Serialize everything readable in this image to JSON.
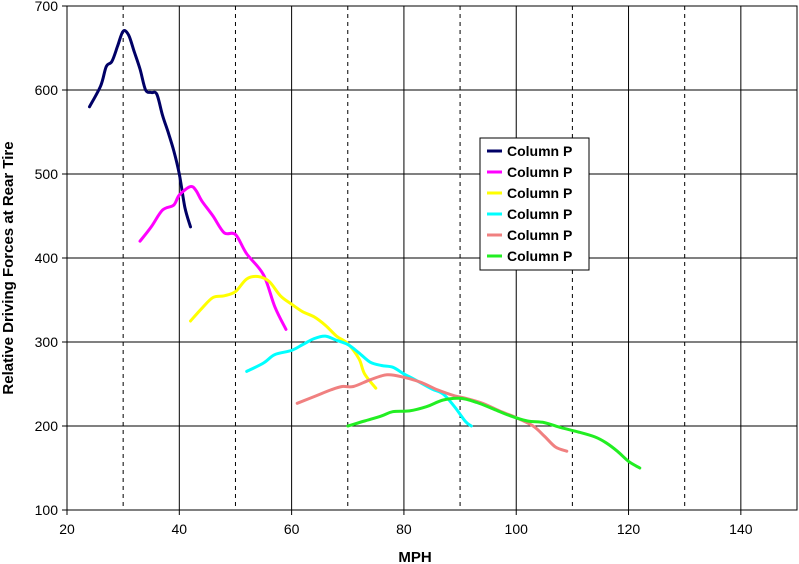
{
  "chart_data": {
    "type": "line",
    "title": "",
    "xlabel": "MPH",
    "ylabel": "Relative Driving Forces at Rear Tire",
    "xlim": [
      20,
      150
    ],
    "ylim": [
      100,
      700
    ],
    "xticks": [
      20,
      40,
      60,
      80,
      100,
      120,
      140
    ],
    "yticks": [
      100,
      200,
      300,
      400,
      500,
      600,
      700
    ],
    "vertical_gridlines": [
      30,
      40,
      50,
      60,
      70,
      80,
      90,
      100,
      110,
      120,
      130,
      140,
      150
    ],
    "vertical_grid_style": "mixed-solid-dashed",
    "horizontal_grid": true,
    "legend_position": "center-right",
    "series": [
      {
        "name": "Column P",
        "color": "#000066",
        "points": [
          [
            24,
            580
          ],
          [
            26,
            605
          ],
          [
            27,
            628
          ],
          [
            28,
            634
          ],
          [
            29,
            652
          ],
          [
            30,
            670
          ],
          [
            31,
            665
          ],
          [
            32,
            645
          ],
          [
            33,
            625
          ],
          [
            34,
            600
          ],
          [
            35,
            597
          ],
          [
            36,
            595
          ],
          [
            37,
            570
          ],
          [
            38,
            550
          ],
          [
            39,
            528
          ],
          [
            40,
            500
          ],
          [
            41,
            460
          ],
          [
            42,
            437
          ]
        ]
      },
      {
        "name": "Column P",
        "color": "#ff00ff",
        "points": [
          [
            33,
            420
          ],
          [
            35,
            437
          ],
          [
            37,
            457
          ],
          [
            39,
            463
          ],
          [
            40,
            475
          ],
          [
            42,
            485
          ],
          [
            43,
            480
          ],
          [
            44,
            468
          ],
          [
            46,
            450
          ],
          [
            48,
            430
          ],
          [
            50,
            428
          ],
          [
            52,
            405
          ],
          [
            55,
            380
          ],
          [
            57,
            342
          ],
          [
            59,
            315
          ]
        ]
      },
      {
        "name": "Column P",
        "color": "#ffff00",
        "points": [
          [
            42,
            325
          ],
          [
            44,
            340
          ],
          [
            46,
            353
          ],
          [
            48,
            355
          ],
          [
            50,
            360
          ],
          [
            52,
            375
          ],
          [
            54,
            378
          ],
          [
            56,
            372
          ],
          [
            58,
            355
          ],
          [
            60,
            345
          ],
          [
            62,
            336
          ],
          [
            64,
            330
          ],
          [
            66,
            320
          ],
          [
            68,
            307
          ],
          [
            70,
            298
          ],
          [
            72,
            280
          ],
          [
            73,
            262
          ],
          [
            75,
            245
          ]
        ]
      },
      {
        "name": "Column P",
        "color": "#00ffff",
        "points": [
          [
            52,
            265
          ],
          [
            55,
            275
          ],
          [
            57,
            285
          ],
          [
            60,
            290
          ],
          [
            62,
            297
          ],
          [
            64,
            304
          ],
          [
            66,
            307
          ],
          [
            68,
            302
          ],
          [
            70,
            297
          ],
          [
            72,
            287
          ],
          [
            74,
            276
          ],
          [
            76,
            272
          ],
          [
            78,
            270
          ],
          [
            80,
            262
          ],
          [
            82,
            255
          ],
          [
            85,
            244
          ],
          [
            87,
            238
          ],
          [
            89,
            223
          ],
          [
            91,
            205
          ],
          [
            92,
            200
          ]
        ]
      },
      {
        "name": "Column P",
        "color": "#f08080",
        "points": [
          [
            61,
            227
          ],
          [
            64,
            235
          ],
          [
            67,
            243
          ],
          [
            69,
            247
          ],
          [
            71,
            247
          ],
          [
            74,
            255
          ],
          [
            77,
            261
          ],
          [
            80,
            258
          ],
          [
            83,
            252
          ],
          [
            86,
            243
          ],
          [
            89,
            236
          ],
          [
            91,
            233
          ],
          [
            94,
            227
          ],
          [
            97,
            218
          ],
          [
            100,
            210
          ],
          [
            103,
            200
          ],
          [
            105,
            188
          ],
          [
            107,
            175
          ],
          [
            109,
            170
          ]
        ]
      },
      {
        "name": "Column P",
        "color": "#22ee22",
        "points": [
          [
            70,
            200
          ],
          [
            73,
            206
          ],
          [
            76,
            212
          ],
          [
            78,
            217
          ],
          [
            81,
            218
          ],
          [
            84,
            223
          ],
          [
            87,
            231
          ],
          [
            90,
            233
          ],
          [
            93,
            228
          ],
          [
            96,
            220
          ],
          [
            99,
            212
          ],
          [
            102,
            206
          ],
          [
            105,
            204
          ],
          [
            108,
            198
          ],
          [
            111,
            193
          ],
          [
            114,
            187
          ],
          [
            116,
            180
          ],
          [
            118,
            170
          ],
          [
            120,
            158
          ],
          [
            122,
            150
          ]
        ]
      }
    ]
  }
}
